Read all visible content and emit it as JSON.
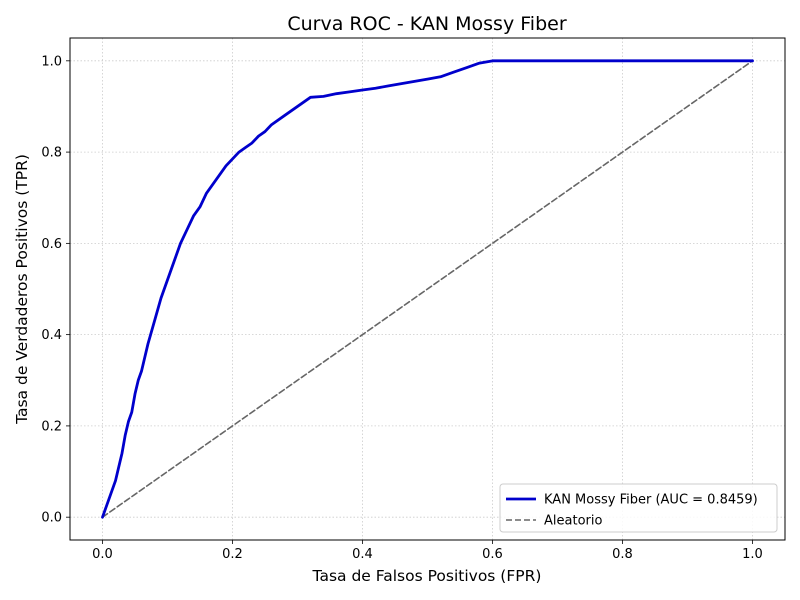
{
  "chart_data": {
    "type": "line",
    "title": "Curva ROC - KAN Mossy Fiber",
    "xlabel": "Tasa de Falsos Positivos (FPR)",
    "ylabel": "Tasa de Verdaderos Positivos (TPR)",
    "xlim": [
      -0.05,
      1.05
    ],
    "ylim": [
      -0.05,
      1.05
    ],
    "xticks": [
      "0.0",
      "0.2",
      "0.4",
      "0.6",
      "0.8",
      "1.0"
    ],
    "yticks": [
      "0.0",
      "0.2",
      "0.4",
      "0.6",
      "0.8",
      "1.0"
    ],
    "grid": true,
    "legend_position": "lower-right",
    "series": [
      {
        "name": "KAN Mossy Fiber (AUC = 0.8459)",
        "color": "#0000cc",
        "style": "solid",
        "x": [
          0.0,
          0.005,
          0.01,
          0.015,
          0.02,
          0.025,
          0.03,
          0.035,
          0.04,
          0.045,
          0.05,
          0.055,
          0.06,
          0.065,
          0.07,
          0.08,
          0.09,
          0.1,
          0.11,
          0.12,
          0.13,
          0.14,
          0.15,
          0.16,
          0.17,
          0.18,
          0.19,
          0.2,
          0.21,
          0.22,
          0.23,
          0.24,
          0.25,
          0.26,
          0.28,
          0.3,
          0.32,
          0.34,
          0.35,
          0.36,
          0.38,
          0.4,
          0.42,
          0.44,
          0.46,
          0.48,
          0.5,
          0.52,
          0.54,
          0.56,
          0.58,
          0.6,
          0.7,
          0.8,
          0.9,
          1.0
        ],
        "y": [
          0.0,
          0.02,
          0.04,
          0.06,
          0.08,
          0.11,
          0.14,
          0.18,
          0.21,
          0.23,
          0.27,
          0.3,
          0.32,
          0.35,
          0.38,
          0.43,
          0.48,
          0.52,
          0.56,
          0.6,
          0.63,
          0.66,
          0.68,
          0.71,
          0.73,
          0.75,
          0.77,
          0.785,
          0.8,
          0.81,
          0.82,
          0.835,
          0.845,
          0.86,
          0.88,
          0.9,
          0.92,
          0.922,
          0.925,
          0.928,
          0.932,
          0.936,
          0.94,
          0.945,
          0.95,
          0.955,
          0.96,
          0.965,
          0.975,
          0.985,
          0.995,
          1.0,
          1.0,
          1.0,
          1.0,
          1.0
        ]
      },
      {
        "name": "Aleatorio",
        "color": "#666666",
        "style": "dashed",
        "x": [
          0.0,
          1.0
        ],
        "y": [
          0.0,
          1.0
        ]
      }
    ]
  }
}
